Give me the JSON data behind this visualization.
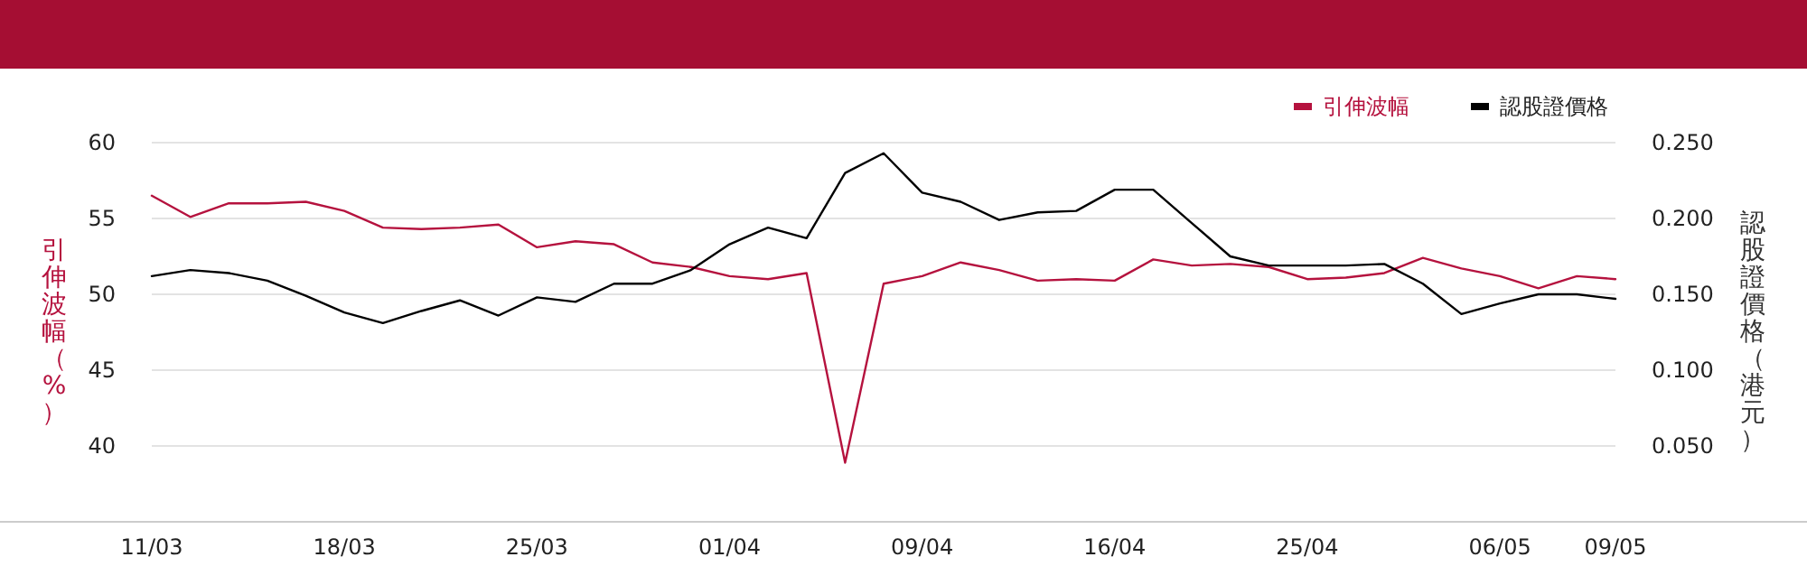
{
  "chart_data": {
    "type": "line",
    "ylabel": "引伸波幅（%）",
    "y2label": "認股證價格（港元）",
    "categories": [
      "11/03",
      null,
      null,
      null,
      null,
      "18/03",
      null,
      null,
      null,
      null,
      "25/03",
      null,
      null,
      null,
      null,
      "01/04",
      null,
      null,
      null,
      null,
      "09/04",
      null,
      null,
      null,
      null,
      "16/04",
      null,
      null,
      null,
      null,
      "25/04",
      null,
      null,
      null,
      null,
      "06/05",
      null,
      null,
      "09/05"
    ],
    "series": [
      {
        "name": "引伸波幅",
        "color": "#b5123e",
        "values": [
          56.5,
          55.1,
          56.0,
          56.0,
          56.1,
          55.5,
          54.4,
          54.3,
          54.4,
          54.6,
          53.1,
          53.5,
          53.3,
          52.1,
          51.8,
          51.2,
          51.0,
          51.4,
          38.9,
          50.7,
          51.2,
          52.1,
          51.6,
          50.9,
          51.0,
          50.9,
          52.3,
          51.9,
          52.0,
          51.8,
          51.0,
          51.1,
          51.4,
          52.4,
          51.7,
          51.2,
          50.4,
          51.2,
          51.0
        ]
      },
      {
        "name": "認股證價格",
        "color": "#000000",
        "axis": "y2",
        "values": [
          0.162,
          0.166,
          0.164,
          0.159,
          0.149,
          0.138,
          0.131,
          0.139,
          0.146,
          0.136,
          0.148,
          0.145,
          0.157,
          0.157,
          0.166,
          0.183,
          0.194,
          0.187,
          0.23,
          0.243,
          0.217,
          0.211,
          0.199,
          0.204,
          0.205,
          0.219,
          0.219,
          0.197,
          0.175,
          0.169,
          0.169,
          0.169,
          0.17,
          0.157,
          0.137,
          0.144,
          0.15,
          0.15,
          0.147
        ]
      }
    ],
    "ylim": [
      35,
      60
    ],
    "yticks": [
      40,
      45,
      50,
      55,
      60
    ],
    "y2lim": [
      0,
      0.25
    ],
    "y2ticks": [
      {
        "value": 0.05,
        "label": "0.050"
      },
      {
        "value": 0.1,
        "label": "0.100"
      },
      {
        "value": 0.15,
        "label": "0.150"
      },
      {
        "value": 0.2,
        "label": "0.200"
      },
      {
        "value": 0.25,
        "label": "0.250"
      }
    ],
    "grid": "y",
    "legend": "top right",
    "marker": "none",
    "line_style": "solid"
  }
}
